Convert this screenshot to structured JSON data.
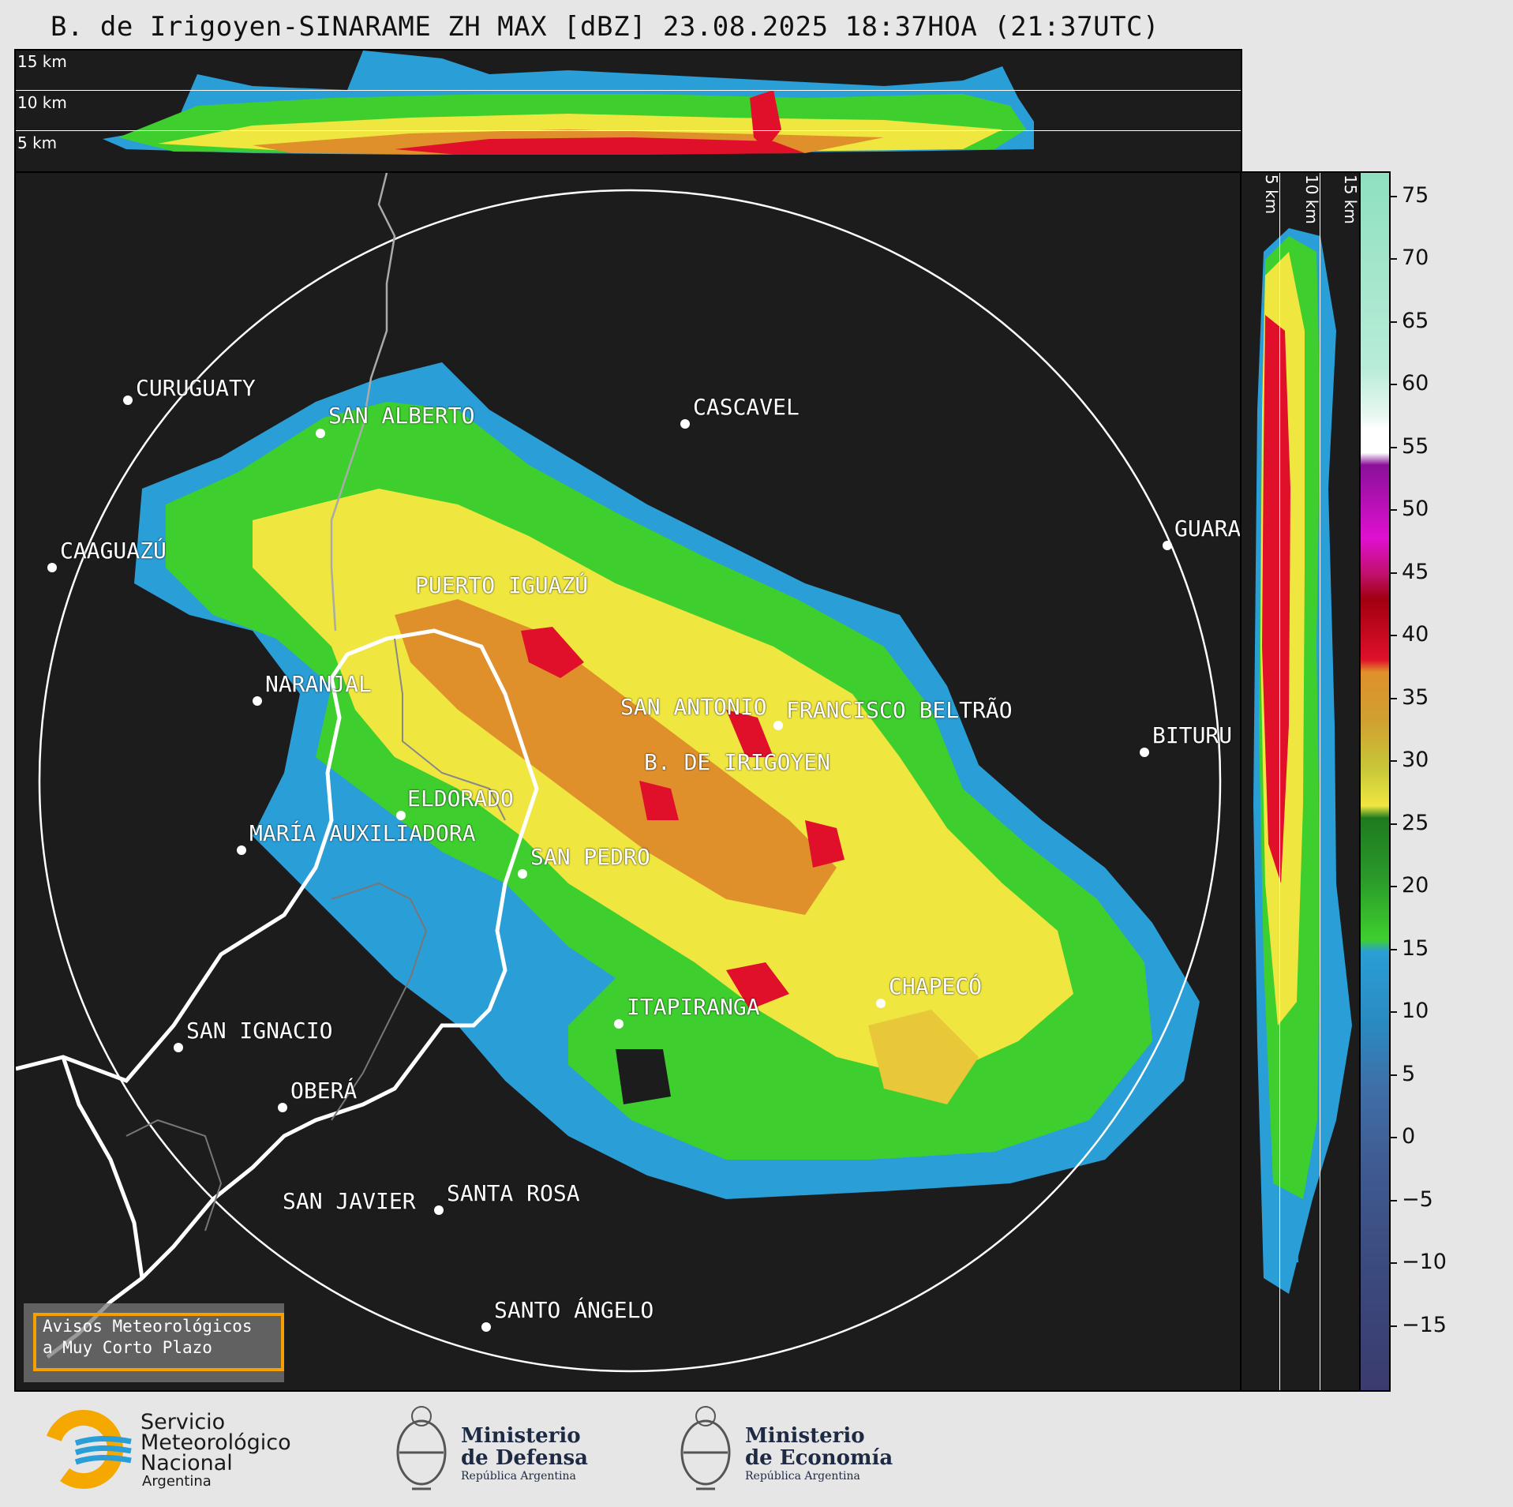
{
  "title": "B. de Irigoyen-SINARAME ZH MAX [dBZ] 23.08.2025 18:37HOA (21:37UTC)",
  "top_panel": {
    "altitude_labels": [
      "15 km",
      "10 km",
      "5 km"
    ]
  },
  "right_panel": {
    "altitude_labels": [
      "5 km",
      "10 km",
      "15 km"
    ]
  },
  "cities": [
    {
      "name": "CURUGUATY"
    },
    {
      "name": "SAN ALBERTO"
    },
    {
      "name": "CASCAVEL"
    },
    {
      "name": "CAAGUAZÚ"
    },
    {
      "name": "GUARA"
    },
    {
      "name": "PUERTO IGUAZÚ"
    },
    {
      "name": "NARANJAL"
    },
    {
      "name": "SAN ANTONIO"
    },
    {
      "name": "FRANCISCO BELTRÃO"
    },
    {
      "name": "BITURU"
    },
    {
      "name": "B. DE IRIGOYEN"
    },
    {
      "name": "ELDORADO"
    },
    {
      "name": "MARÍA AUXILIADORA"
    },
    {
      "name": "SAN PEDRO"
    },
    {
      "name": "ITAPIRANGA"
    },
    {
      "name": "CHAPECÓ"
    },
    {
      "name": "SAN IGNACIO"
    },
    {
      "name": "OBERÁ"
    },
    {
      "name": "SAN JAVIER"
    },
    {
      "name": "SANTA ROSA"
    },
    {
      "name": "SANTO ÁNGELO"
    }
  ],
  "colorbar": {
    "unit": "dBZ",
    "range": [
      -20,
      77
    ],
    "ticks": [
      "75",
      "70",
      "65",
      "60",
      "55",
      "50",
      "45",
      "40",
      "35",
      "30",
      "25",
      "20",
      "15",
      "10",
      "5",
      "0",
      "−5",
      "−10",
      "−15"
    ],
    "colors": {
      "low": "#3b3b6e",
      "blue_low": "#3f6fa8",
      "blue": "#2a9ed6",
      "green": "#3ecf2e",
      "dark_green": "#1f7a1f",
      "yellow": "#f0e640",
      "orange": "#e0902a",
      "red": "#e0102a",
      "dark_red": "#a00010",
      "magenta": "#e010d0",
      "purple": "#8a109a",
      "white": "#ffffff",
      "mint": "#9fe8c8"
    }
  },
  "warning_box": {
    "line1": "Avisos Meteorológicos",
    "line2": "a Muy Corto Plazo"
  },
  "logos": {
    "smn": {
      "line1": "Servicio",
      "line2": "Meteorológico",
      "line3": "Nacional",
      "line4": "Argentina"
    },
    "defensa": {
      "line1": "Ministerio",
      "line2": "de Defensa",
      "line3": "República Argentina"
    },
    "economia": {
      "line1": "Ministerio",
      "line2": "de Economía",
      "line3": "República Argentina"
    }
  }
}
